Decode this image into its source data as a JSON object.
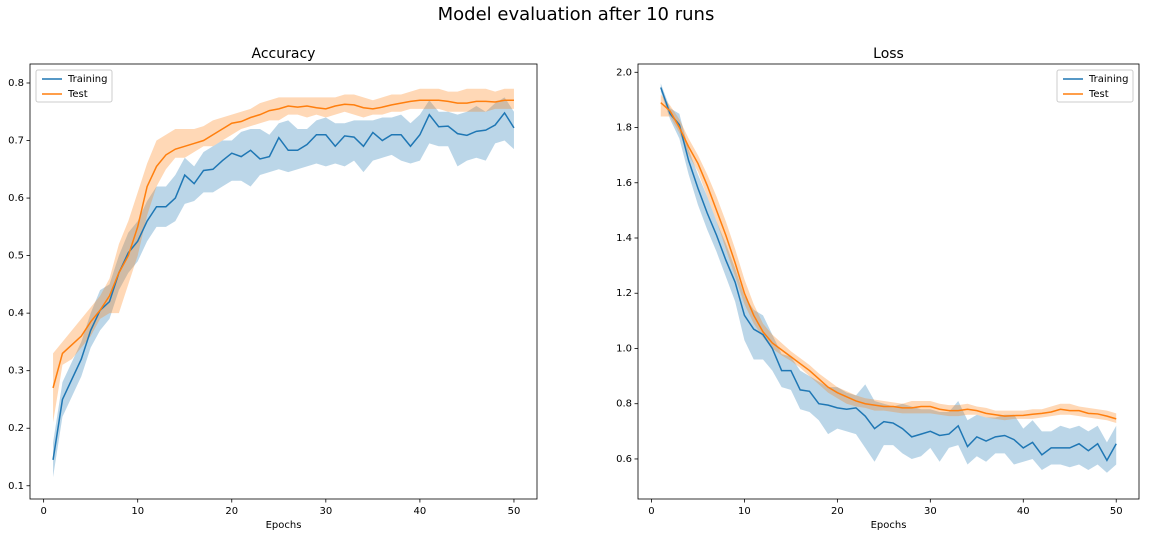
{
  "title": "Model evaluation after 10 runs",
  "chart_data": [
    {
      "type": "line",
      "title": "Accuracy",
      "xlabel": "Epochs",
      "legend": "upper left",
      "x": [
        1,
        2,
        3,
        4,
        5,
        6,
        7,
        8,
        9,
        10,
        11,
        12,
        13,
        14,
        15,
        16,
        17,
        18,
        19,
        20,
        21,
        22,
        23,
        24,
        25,
        26,
        27,
        28,
        29,
        30,
        31,
        32,
        33,
        34,
        35,
        36,
        37,
        38,
        39,
        40,
        41,
        42,
        43,
        44,
        45,
        46,
        47,
        48,
        49,
        50
      ],
      "xlim": [
        -1.45,
        52.45
      ],
      "xticks": [
        0,
        10,
        20,
        30,
        40,
        50
      ],
      "ylim": [
        0.077,
        0.833
      ],
      "yticks": [
        0.1,
        0.2,
        0.3,
        0.4,
        0.5,
        0.6,
        0.7,
        0.8
      ],
      "series": [
        {
          "name": "Training",
          "color": "#1f77b4",
          "values": [
            0.145,
            0.25,
            0.285,
            0.32,
            0.37,
            0.405,
            0.42,
            0.47,
            0.505,
            0.525,
            0.56,
            0.585,
            0.585,
            0.6,
            0.64,
            0.625,
            0.648,
            0.65,
            0.665,
            0.678,
            0.672,
            0.683,
            0.668,
            0.672,
            0.705,
            0.683,
            0.683,
            0.693,
            0.71,
            0.71,
            0.69,
            0.708,
            0.706,
            0.69,
            0.714,
            0.7,
            0.71,
            0.71,
            0.69,
            0.71,
            0.745,
            0.724,
            0.725,
            0.712,
            0.709,
            0.716,
            0.718,
            0.727,
            0.748,
            0.722
          ],
          "lower": [
            0.115,
            0.22,
            0.255,
            0.29,
            0.34,
            0.37,
            0.39,
            0.44,
            0.47,
            0.49,
            0.525,
            0.55,
            0.55,
            0.56,
            0.59,
            0.595,
            0.61,
            0.61,
            0.62,
            0.63,
            0.63,
            0.62,
            0.64,
            0.645,
            0.65,
            0.645,
            0.65,
            0.655,
            0.66,
            0.655,
            0.66,
            0.655,
            0.665,
            0.645,
            0.665,
            0.67,
            0.675,
            0.665,
            0.66,
            0.665,
            0.695,
            0.69,
            0.69,
            0.655,
            0.665,
            0.67,
            0.665,
            0.695,
            0.7,
            0.685
          ],
          "upper": [
            0.175,
            0.28,
            0.315,
            0.35,
            0.4,
            0.44,
            0.45,
            0.5,
            0.54,
            0.56,
            0.595,
            0.62,
            0.62,
            0.64,
            0.67,
            0.655,
            0.68,
            0.69,
            0.7,
            0.7,
            0.715,
            0.72,
            0.72,
            0.71,
            0.73,
            0.735,
            0.72,
            0.72,
            0.735,
            0.74,
            0.73,
            0.73,
            0.735,
            0.735,
            0.735,
            0.74,
            0.74,
            0.745,
            0.73,
            0.745,
            0.77,
            0.75,
            0.75,
            0.745,
            0.75,
            0.76,
            0.75,
            0.765,
            0.775,
            0.75
          ]
        },
        {
          "name": "Test",
          "color": "#ff7f0e",
          "values": [
            0.27,
            0.33,
            0.345,
            0.36,
            0.385,
            0.405,
            0.43,
            0.47,
            0.5,
            0.55,
            0.62,
            0.655,
            0.675,
            0.685,
            0.69,
            0.695,
            0.7,
            0.71,
            0.72,
            0.73,
            0.733,
            0.74,
            0.745,
            0.752,
            0.755,
            0.76,
            0.758,
            0.76,
            0.757,
            0.755,
            0.76,
            0.763,
            0.762,
            0.757,
            0.755,
            0.758,
            0.762,
            0.765,
            0.768,
            0.77,
            0.77,
            0.77,
            0.768,
            0.765,
            0.765,
            0.768,
            0.768,
            0.767,
            0.77,
            0.77
          ],
          "lower": [
            0.21,
            0.31,
            0.32,
            0.34,
            0.36,
            0.39,
            0.4,
            0.4,
            0.45,
            0.5,
            0.57,
            0.62,
            0.65,
            0.67,
            0.67,
            0.68,
            0.69,
            0.69,
            0.7,
            0.71,
            0.72,
            0.725,
            0.73,
            0.735,
            0.735,
            0.745,
            0.745,
            0.74,
            0.745,
            0.74,
            0.745,
            0.75,
            0.745,
            0.74,
            0.745,
            0.745,
            0.75,
            0.75,
            0.755,
            0.755,
            0.755,
            0.755,
            0.75,
            0.75,
            0.75,
            0.75,
            0.75,
            0.755,
            0.755,
            0.755
          ],
          "upper": [
            0.33,
            0.35,
            0.37,
            0.39,
            0.41,
            0.43,
            0.46,
            0.52,
            0.56,
            0.61,
            0.66,
            0.7,
            0.71,
            0.72,
            0.72,
            0.72,
            0.725,
            0.735,
            0.74,
            0.745,
            0.75,
            0.755,
            0.765,
            0.77,
            0.775,
            0.775,
            0.775,
            0.775,
            0.775,
            0.775,
            0.775,
            0.78,
            0.78,
            0.775,
            0.77,
            0.775,
            0.78,
            0.78,
            0.785,
            0.79,
            0.79,
            0.79,
            0.785,
            0.785,
            0.79,
            0.79,
            0.79,
            0.785,
            0.79,
            0.79
          ]
        }
      ]
    },
    {
      "type": "line",
      "title": "Loss",
      "xlabel": "Epochs",
      "legend": "upper right",
      "x": [
        1,
        2,
        3,
        4,
        5,
        6,
        7,
        8,
        9,
        10,
        11,
        12,
        13,
        14,
        15,
        16,
        17,
        18,
        19,
        20,
        21,
        22,
        23,
        24,
        25,
        26,
        27,
        28,
        29,
        30,
        31,
        32,
        33,
        34,
        35,
        36,
        37,
        38,
        39,
        40,
        41,
        42,
        43,
        44,
        45,
        46,
        47,
        48,
        49,
        50
      ],
      "xlim": [
        -1.45,
        52.45
      ],
      "xticks": [
        0,
        10,
        20,
        30,
        40,
        50
      ],
      "ylim": [
        0.455,
        2.03
      ],
      "yticks": [
        0.6,
        0.8,
        {
          "value": 1,
          "label": "1.0"
        },
        1.2,
        1.4,
        1.6,
        1.8,
        {
          "value": 2,
          "label": "2.0"
        }
      ],
      "series": [
        {
          "name": "Training",
          "color": "#1f77b4",
          "values": [
            1.945,
            1.85,
            1.81,
            1.68,
            1.58,
            1.49,
            1.41,
            1.32,
            1.24,
            1.12,
            1.07,
            1.05,
            1.0,
            0.92,
            0.92,
            0.85,
            0.845,
            0.8,
            0.795,
            0.785,
            0.78,
            0.785,
            0.755,
            0.71,
            0.735,
            0.73,
            0.71,
            0.68,
            0.69,
            0.7,
            0.685,
            0.69,
            0.72,
            0.645,
            0.68,
            0.665,
            0.68,
            0.685,
            0.67,
            0.64,
            0.66,
            0.615,
            0.64,
            0.64,
            0.64,
            0.655,
            0.63,
            0.655,
            0.595,
            0.655
          ],
          "lower": [
            1.93,
            1.83,
            1.76,
            1.63,
            1.52,
            1.43,
            1.35,
            1.26,
            1.17,
            1.03,
            0.96,
            0.96,
            0.92,
            0.86,
            0.85,
            0.78,
            0.77,
            0.74,
            0.69,
            0.71,
            0.7,
            0.69,
            0.64,
            0.59,
            0.65,
            0.65,
            0.62,
            0.6,
            0.61,
            0.64,
            0.59,
            0.64,
            0.65,
            0.58,
            0.61,
            0.59,
            0.62,
            0.62,
            0.58,
            0.59,
            0.6,
            0.56,
            0.58,
            0.58,
            0.57,
            0.58,
            0.56,
            0.58,
            0.55,
            0.58
          ],
          "upper": [
            1.96,
            1.87,
            1.85,
            1.72,
            1.63,
            1.55,
            1.46,
            1.38,
            1.29,
            1.19,
            1.14,
            1.12,
            1.05,
            0.98,
            0.97,
            0.92,
            0.9,
            0.88,
            0.86,
            0.86,
            0.84,
            0.83,
            0.87,
            0.81,
            0.8,
            0.79,
            0.8,
            0.79,
            0.78,
            0.78,
            0.77,
            0.77,
            0.81,
            0.74,
            0.76,
            0.75,
            0.75,
            0.76,
            0.76,
            0.71,
            0.74,
            0.7,
            0.7,
            0.72,
            0.71,
            0.72,
            0.7,
            0.72,
            0.66,
            0.72
          ]
        },
        {
          "name": "Test",
          "color": "#ff7f0e",
          "values": [
            1.89,
            1.86,
            1.8,
            1.73,
            1.67,
            1.59,
            1.5,
            1.41,
            1.31,
            1.2,
            1.12,
            1.06,
            1.02,
            0.995,
            0.97,
            0.945,
            0.92,
            0.89,
            0.86,
            0.84,
            0.825,
            0.81,
            0.8,
            0.795,
            0.79,
            0.79,
            0.785,
            0.785,
            0.79,
            0.79,
            0.78,
            0.775,
            0.775,
            0.78,
            0.775,
            0.765,
            0.76,
            0.755,
            0.757,
            0.758,
            0.762,
            0.765,
            0.77,
            0.78,
            0.775,
            0.775,
            0.765,
            0.763,
            0.755,
            0.745
          ],
          "lower": [
            1.84,
            1.84,
            1.78,
            1.7,
            1.64,
            1.55,
            1.46,
            1.36,
            1.26,
            1.16,
            1.09,
            1.04,
            1.0,
            0.975,
            0.955,
            0.93,
            0.9,
            0.87,
            0.84,
            0.82,
            0.8,
            0.79,
            0.785,
            0.775,
            0.775,
            0.77,
            0.765,
            0.765,
            0.765,
            0.765,
            0.76,
            0.755,
            0.755,
            0.76,
            0.76,
            0.75,
            0.745,
            0.74,
            0.745,
            0.745,
            0.745,
            0.75,
            0.755,
            0.76,
            0.76,
            0.755,
            0.75,
            0.745,
            0.74,
            0.73
          ],
          "upper": [
            1.92,
            1.88,
            1.83,
            1.76,
            1.7,
            1.63,
            1.55,
            1.46,
            1.36,
            1.25,
            1.16,
            1.09,
            1.05,
            1.02,
            0.99,
            0.965,
            0.94,
            0.91,
            0.885,
            0.86,
            0.845,
            0.83,
            0.82,
            0.815,
            0.81,
            0.805,
            0.8,
            0.81,
            0.81,
            0.81,
            0.8,
            0.795,
            0.795,
            0.8,
            0.79,
            0.785,
            0.775,
            0.775,
            0.775,
            0.775,
            0.78,
            0.78,
            0.79,
            0.8,
            0.8,
            0.79,
            0.785,
            0.78,
            0.775,
            0.765
          ]
        }
      ]
    }
  ]
}
